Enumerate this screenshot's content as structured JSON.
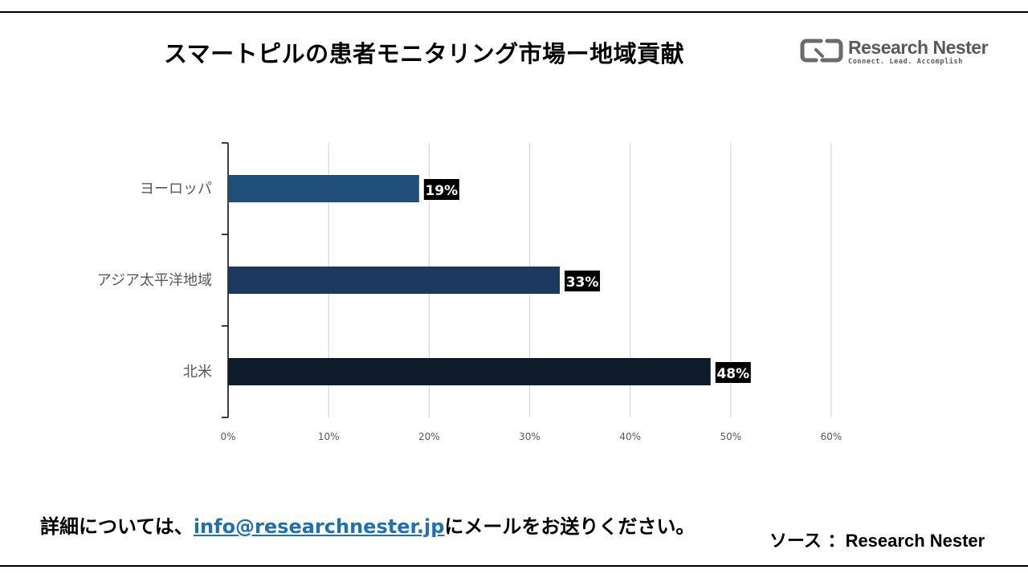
{
  "header": {
    "title": "スマートピルの患者モニタリング市場ー地域貢献"
  },
  "logo": {
    "name": "Research Nester",
    "tagline": "Connect. Lead. Accomplish",
    "color": "#595959"
  },
  "chart_data": {
    "type": "bar",
    "orientation": "horizontal",
    "categories": [
      "ヨーロッパ",
      "アジア太平洋地域",
      "北米"
    ],
    "values": [
      19,
      33,
      48
    ],
    "data_labels": [
      "19%",
      "33%",
      "48%"
    ],
    "bar_colors": [
      "#1f4e79",
      "#1c3a5e",
      "#0d1b2a"
    ],
    "xlim": [
      0,
      60
    ],
    "x_ticks": [
      "0%",
      "10%",
      "20%",
      "30%",
      "40%",
      "50%",
      "60%"
    ],
    "grid": true,
    "legend": "none"
  },
  "footer": {
    "contact_prefix": "詳細については、",
    "email": "info@researchnester.jp",
    "contact_suffix": "にメールをお送りください。",
    "source_prefix": "ソース ：",
    "source_name": "Research Nester"
  }
}
